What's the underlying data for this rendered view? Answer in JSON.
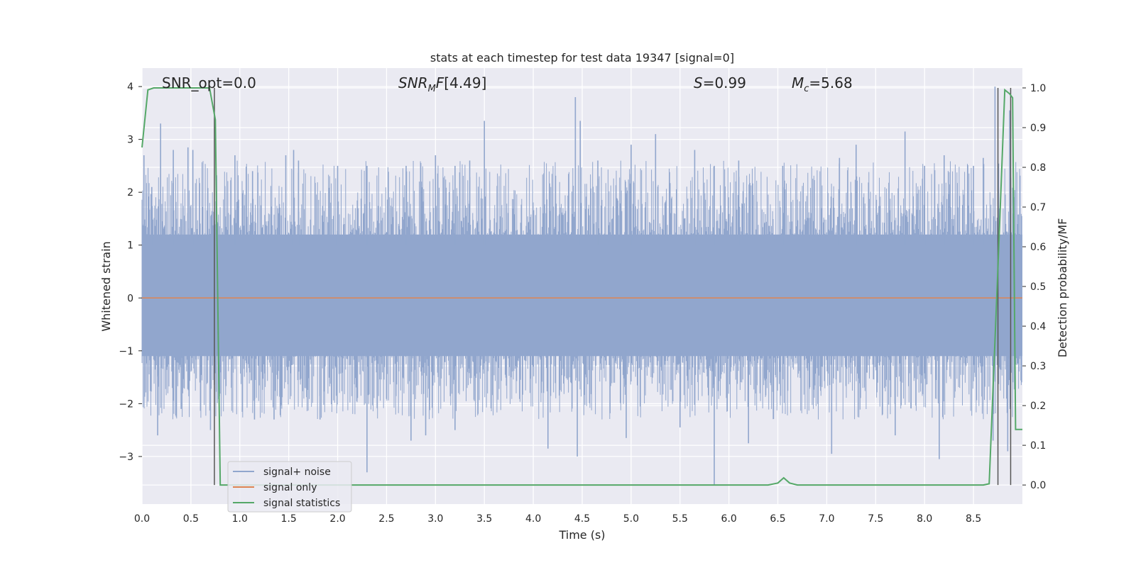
{
  "chart_data": {
    "type": "line",
    "title": "stats at each timestep for test data 19347 [signal=0]",
    "xlabel": "Time (s)",
    "ylabel": "Whitened strain",
    "ylabel_right": "Detection probability/MF",
    "xlim": [
      0.0,
      9.0
    ],
    "ylim": [
      -3.9,
      4.35
    ],
    "ylim_right": [
      -0.048,
      1.05
    ],
    "x_ticks": [
      "0.0",
      "0.5",
      "1.0",
      "1.5",
      "2.0",
      "2.5",
      "3.0",
      "3.5",
      "4.0",
      "4.5",
      "5.0",
      "5.5",
      "6.0",
      "6.5",
      "7.0",
      "7.5",
      "8.0",
      "8.5"
    ],
    "y_ticks": [
      "4",
      "3",
      "2",
      "1",
      "0",
      "−1",
      "−2",
      "−3"
    ],
    "y_right_ticks": [
      "1.0",
      "0.9",
      "0.8",
      "0.7",
      "0.6",
      "0.5",
      "0.4",
      "0.3",
      "0.2",
      "0.1",
      "0.0"
    ],
    "grid": true,
    "legend_position": "lower-left",
    "annotations": {
      "snr_opt": "SNR_opt=0.0",
      "snr_mf": "[4.49]",
      "s": "=0.99",
      "mc": "=5.68"
    },
    "series": [
      {
        "name": "signal+ noise",
        "color": "#91a6cd",
        "description": "whitened strain noise band, approx ±1.5 with spikes",
        "envelope": {
          "core_low": -1.3,
          "core_high": 1.4
        },
        "spikes_top": [
          [
            0.02,
            2.7
          ],
          [
            0.1,
            2.1
          ],
          [
            0.19,
            3.3
          ],
          [
            0.32,
            2.8
          ],
          [
            0.47,
            2.85
          ],
          [
            0.52,
            2.8
          ],
          [
            0.95,
            2.7
          ],
          [
            1.13,
            2.4
          ],
          [
            1.47,
            2.7
          ],
          [
            1.55,
            2.8
          ],
          [
            1.6,
            2.6
          ],
          [
            2.0,
            2.5
          ],
          [
            2.3,
            2.5
          ],
          [
            2.7,
            2.5
          ],
          [
            3.0,
            2.7
          ],
          [
            3.2,
            2.5
          ],
          [
            3.35,
            2.6
          ],
          [
            3.5,
            3.35
          ],
          [
            4.43,
            3.8
          ],
          [
            4.48,
            3.35
          ],
          [
            4.66,
            2.6
          ],
          [
            5.0,
            2.9
          ],
          [
            5.25,
            3.1
          ],
          [
            5.65,
            2.8
          ],
          [
            5.85,
            2.5
          ],
          [
            6.1,
            2.6
          ],
          [
            6.55,
            2.5
          ],
          [
            7.13,
            2.65
          ],
          [
            7.3,
            2.9
          ],
          [
            7.8,
            3.15
          ],
          [
            8.0,
            2.5
          ],
          [
            8.2,
            2.7
          ],
          [
            8.5,
            2.5
          ],
          [
            8.6,
            2.65
          ],
          [
            8.72,
            4.0
          ],
          [
            8.87,
            3.55
          ]
        ],
        "spikes_bottom": [
          [
            0.16,
            -2.6
          ],
          [
            0.4,
            -2.1
          ],
          [
            0.7,
            -2.5
          ],
          [
            1.15,
            -2.3
          ],
          [
            1.35,
            -2.3
          ],
          [
            1.82,
            -2.3
          ],
          [
            2.3,
            -3.3
          ],
          [
            2.75,
            -2.7
          ],
          [
            2.9,
            -2.6
          ],
          [
            3.2,
            -2.5
          ],
          [
            4.15,
            -2.85
          ],
          [
            4.45,
            -3.0
          ],
          [
            4.95,
            -2.65
          ],
          [
            5.5,
            -2.45
          ],
          [
            5.85,
            -3.55
          ],
          [
            6.2,
            -2.75
          ],
          [
            7.05,
            -2.95
          ],
          [
            7.7,
            -2.6
          ],
          [
            8.15,
            -3.05
          ],
          [
            8.7,
            -2.7
          ],
          [
            8.85,
            -2.9
          ]
        ]
      },
      {
        "name": "signal only",
        "color": "#dd8452",
        "x": [
          0.0,
          9.0
        ],
        "y": [
          0.0,
          0.0
        ]
      },
      {
        "name": "signal statistics",
        "color": "#55a868",
        "axis": "right",
        "x": [
          0.0,
          0.06,
          0.12,
          0.2,
          0.4,
          0.6,
          0.69,
          0.75,
          0.8,
          1.0,
          2.0,
          3.0,
          4.0,
          5.0,
          6.0,
          6.4,
          6.5,
          6.56,
          6.62,
          6.7,
          7.0,
          8.0,
          8.6,
          8.66,
          8.75,
          8.82,
          8.87,
          8.9,
          8.93,
          9.0
        ],
        "y": [
          0.85,
          0.995,
          1.0,
          1.0,
          1.0,
          1.0,
          1.0,
          0.92,
          0.0,
          0.0,
          0.0,
          0.0,
          0.0,
          0.0,
          0.0,
          0.0,
          0.005,
          0.018,
          0.005,
          0.0,
          0.0,
          0.0,
          0.0,
          0.003,
          0.55,
          0.995,
          0.985,
          0.975,
          0.14,
          0.14
        ]
      }
    ],
    "vertical_lines": [
      0.74,
      8.75,
      8.88
    ]
  }
}
